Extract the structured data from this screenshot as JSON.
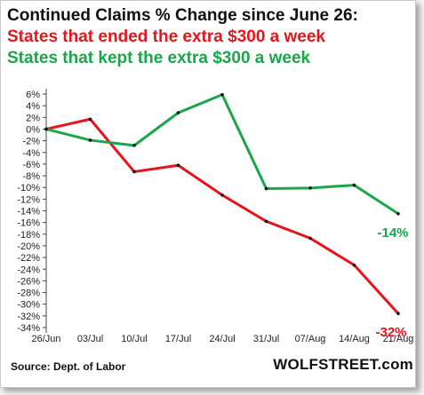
{
  "chart_data": {
    "type": "line",
    "title": "Continued Claims % Change since June 26:",
    "categories": [
      "26/Jun",
      "03/Jul",
      "10/Jul",
      "17/Jul",
      "24/Jul",
      "31/Jul",
      "07/Aug",
      "14/Aug",
      "21/Aug"
    ],
    "series": [
      {
        "name": "States that ended the extra $300 a week",
        "color": "#e8141b",
        "values": [
          0,
          1.7,
          -7.3,
          -6.2,
          -11.3,
          -15.8,
          -18.7,
          -23.3,
          -31.6
        ],
        "end_label": "-32%"
      },
      {
        "name": "States that kept the extra $300 a week",
        "color": "#1aa64a",
        "values": [
          0,
          -1.9,
          -2.8,
          2.8,
          5.9,
          -10.2,
          -10.1,
          -9.6,
          -14.5
        ],
        "end_label": "-14%"
      }
    ],
    "ylim": [
      -35,
      7
    ],
    "yticks": [
      6,
      4,
      2,
      0,
      -2,
      -4,
      -6,
      -8,
      -10,
      -12,
      -14,
      -16,
      -18,
      -20,
      -22,
      -24,
      -26,
      -28,
      -30,
      -32,
      -34
    ],
    "ytick_format": "%",
    "grid": false,
    "source": "Source: Dept. of Labor",
    "brand": "WOLFSTREET.com"
  }
}
